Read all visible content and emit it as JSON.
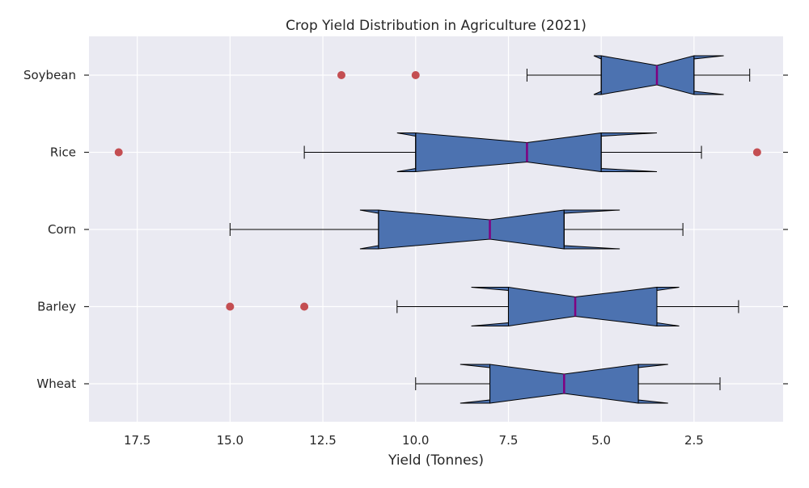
{
  "chart_data": {
    "type": "box",
    "title": "Crop Yield Distribution in Agriculture (2021)",
    "xlabel": "Yield (Tonnes)",
    "ylabel": "",
    "x_axis_inverted": true,
    "xlim": [
      18.8,
      0.1
    ],
    "xticks": [
      17.5,
      15.0,
      12.5,
      10.0,
      7.5,
      5.0,
      2.5
    ],
    "xtick_labels": [
      "17.5",
      "15.0",
      "12.5",
      "10.0",
      "7.5",
      "5.0",
      "2.5"
    ],
    "notched": true,
    "grid": true,
    "categories": [
      "Wheat",
      "Barley",
      "Corn",
      "Rice",
      "Soybean"
    ],
    "boxes": [
      {
        "name": "Wheat",
        "whisker_low": 1.8,
        "q1": 4.0,
        "median": 6.0,
        "q3": 8.0,
        "whisker_high": 10.0,
        "notch_low": 3.2,
        "notch_high": 8.8,
        "outliers": []
      },
      {
        "name": "Barley",
        "whisker_low": 1.3,
        "q1": 3.5,
        "median": 5.7,
        "q3": 7.5,
        "whisker_high": 10.5,
        "notch_low": 2.9,
        "notch_high": 8.5,
        "outliers": [
          13.0,
          15.0
        ]
      },
      {
        "name": "Corn",
        "whisker_low": 2.8,
        "q1": 6.0,
        "median": 8.0,
        "q3": 11.0,
        "whisker_high": 15.0,
        "notch_low": 4.5,
        "notch_high": 11.5,
        "outliers": []
      },
      {
        "name": "Rice",
        "whisker_low": 2.3,
        "q1": 5.0,
        "median": 7.0,
        "q3": 10.0,
        "whisker_high": 13.0,
        "notch_low": 3.5,
        "notch_high": 10.5,
        "outliers": [
          0.8,
          18.0
        ]
      },
      {
        "name": "Soybean",
        "whisker_low": 1.0,
        "q1": 2.5,
        "median": 3.5,
        "q3": 5.0,
        "whisker_high": 7.0,
        "notch_low": 1.7,
        "notch_high": 5.2,
        "outliers": [
          10.0,
          12.0
        ]
      }
    ],
    "colors": {
      "plot_background": "#eaeaf2",
      "grid": "#ffffff",
      "box_fill": "#4c72b0",
      "median": "#800080",
      "outlier": "#c44e52",
      "edge": "#000000"
    }
  }
}
